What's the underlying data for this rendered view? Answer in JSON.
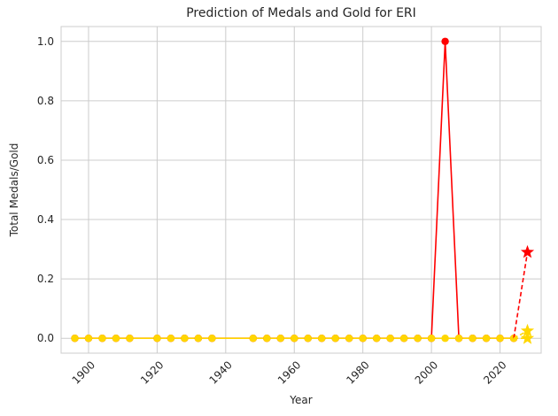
{
  "chart_data": {
    "type": "line",
    "title": "Prediction of Medals and Gold for ERI",
    "xlabel": "Year",
    "ylabel": "Total Medals/Gold",
    "xlim": [
      1892,
      2032
    ],
    "ylim": [
      -0.05,
      1.05
    ],
    "x_ticks": [
      1900,
      1920,
      1940,
      1960,
      1980,
      2000,
      2020
    ],
    "y_ticks": [
      0.0,
      0.2,
      0.4,
      0.6,
      0.8,
      1.0
    ],
    "grid": true,
    "legend": "none",
    "x": [
      1896,
      1900,
      1904,
      1908,
      1912,
      1920,
      1924,
      1928,
      1932,
      1936,
      1948,
      1952,
      1956,
      1960,
      1964,
      1968,
      1972,
      1976,
      1980,
      1984,
      1988,
      1992,
      1996,
      2000,
      2004,
      2008,
      2012,
      2016,
      2020,
      2024
    ],
    "series": [
      {
        "color": "#ff0000",
        "values": [
          0,
          0,
          0,
          0,
          0,
          0,
          0,
          0,
          0,
          0,
          0,
          0,
          0,
          0,
          0,
          0,
          0,
          0,
          0,
          0,
          0,
          0,
          0,
          0,
          1,
          0,
          0,
          0,
          0,
          0
        ]
      },
      {
        "color": "#ffd700",
        "values": [
          0,
          0,
          0,
          0,
          0,
          0,
          0,
          0,
          0,
          0,
          0,
          0,
          0,
          0,
          0,
          0,
          0,
          0,
          0,
          0,
          0,
          0,
          0,
          0,
          0,
          0,
          0,
          0,
          0,
          0
        ]
      }
    ],
    "predictions": [
      {
        "color": "#ff0000",
        "from": [
          2024,
          0
        ],
        "to": [
          2028,
          0.29
        ]
      },
      {
        "color": "#ffd700",
        "from": [
          2024,
          0
        ],
        "to": [
          2028,
          0.025
        ]
      },
      {
        "color": "#ffd700",
        "from": [
          2024,
          0
        ],
        "to": [
          2028,
          0.0
        ]
      }
    ]
  }
}
